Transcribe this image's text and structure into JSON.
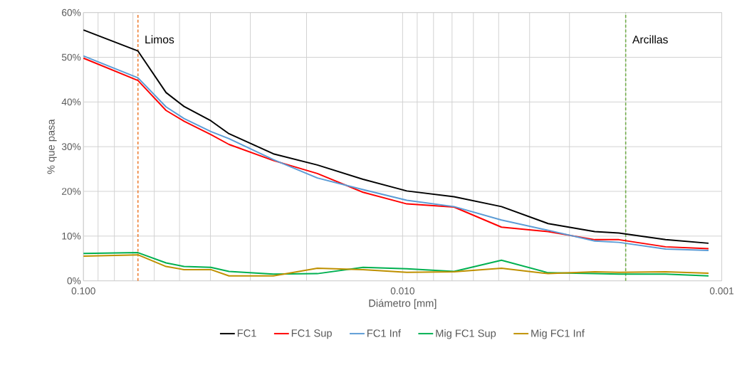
{
  "chart_data": {
    "type": "line",
    "xlabel": "Diámetro [mm]",
    "ylabel": "% que pasa",
    "log": "x",
    "grid": true,
    "legend": "bottom",
    "xlim": [
      0.1,
      0.001
    ],
    "xticks": [
      {
        "value": 0.1,
        "label": "0.100"
      },
      {
        "value": 0.01,
        "label": "0.010"
      },
      {
        "value": 0.001,
        "label": "0.001"
      }
    ],
    "ylim": [
      0,
      60
    ],
    "yticks": [
      {
        "value": 0,
        "label": "0%"
      },
      {
        "value": 10,
        "label": "10%"
      },
      {
        "value": 20,
        "label": "20%"
      },
      {
        "value": 30,
        "label": "30%"
      },
      {
        "value": 40,
        "label": "40%"
      },
      {
        "value": 50,
        "label": "50%"
      },
      {
        "value": 60,
        "label": "60%"
      }
    ],
    "x": [
      0.1,
      0.0675,
      0.0551,
      0.0484,
      0.0399,
      0.035,
      0.0254,
      0.0185,
      0.0133,
      0.0097,
      0.0069,
      0.0049,
      0.0035,
      0.0025,
      0.0021,
      0.0015,
      0.0011
    ],
    "series": [
      {
        "name": "FC1",
        "color": "#000000",
        "values": [
          56.1,
          51.4,
          42.1,
          39.0,
          35.8,
          32.9,
          28.4,
          25.9,
          22.7,
          20.1,
          18.8,
          16.6,
          12.8,
          11.0,
          10.7,
          9.2,
          8.4
        ]
      },
      {
        "name": "FC1 Sup",
        "color": "#ff0000",
        "values": [
          49.8,
          44.8,
          38.1,
          35.7,
          32.7,
          30.5,
          26.9,
          24.0,
          19.8,
          17.2,
          16.5,
          12.0,
          11.0,
          9.2,
          9.2,
          7.6,
          7.2
        ]
      },
      {
        "name": "FC1 Inf",
        "color": "#5b9bd5",
        "values": [
          50.3,
          45.4,
          38.9,
          36.3,
          33.4,
          31.8,
          27.1,
          23.0,
          20.4,
          18.0,
          16.6,
          13.6,
          11.3,
          8.9,
          8.6,
          7.1,
          6.8
        ]
      },
      {
        "name": "Mig FC1 Sup",
        "color": "#00b050",
        "values": [
          6.1,
          6.3,
          4.0,
          3.2,
          3.0,
          2.1,
          1.5,
          1.6,
          3.0,
          2.7,
          2.1,
          4.6,
          1.8,
          1.6,
          1.5,
          1.5,
          1.1
        ]
      },
      {
        "name": "Mig FC1 Inf",
        "color": "#bf9000",
        "values": [
          5.5,
          5.8,
          3.2,
          2.5,
          2.5,
          1.1,
          1.1,
          2.8,
          2.5,
          1.9,
          2.0,
          2.8,
          1.6,
          2.0,
          1.9,
          2.0,
          1.7
        ]
      }
    ],
    "ref_lines": [
      {
        "axis": "x",
        "value": 0.0675,
        "label": "Limos",
        "color": "#ed7d31",
        "line_style": "dashed"
      },
      {
        "axis": "x",
        "value": 0.002,
        "label": "Arcillas",
        "color": "#70ad47",
        "line_style": "dashed"
      }
    ]
  }
}
